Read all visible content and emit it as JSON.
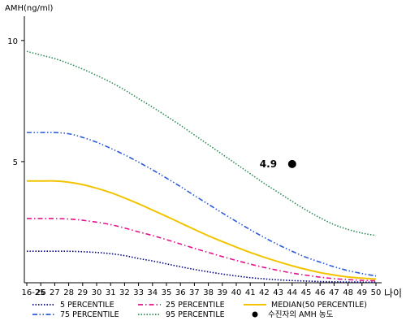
{
  "chart_data": {
    "type": "line",
    "ylabel": "AMH(ng/ml)",
    "xlabel": "나이",
    "x_categories": [
      "16-25",
      "26",
      "27",
      "28",
      "29",
      "30",
      "31",
      "32",
      "33",
      "34",
      "35",
      "36",
      "37",
      "38",
      "39",
      "40",
      "41",
      "42",
      "43",
      "44",
      "45",
      "46",
      "47",
      "48",
      "49",
      "50"
    ],
    "ylim": [
      0,
      11
    ],
    "yticks": [
      5,
      10
    ],
    "grid": false,
    "legend_position": "bottom",
    "series": [
      {
        "name": "5 PERCENTILE",
        "color": "#000080",
        "style": "dotted",
        "values": [
          1.3,
          1.3,
          1.3,
          1.3,
          1.28,
          1.25,
          1.2,
          1.12,
          1.0,
          0.9,
          0.78,
          0.66,
          0.55,
          0.45,
          0.36,
          0.28,
          0.21,
          0.16,
          0.12,
          0.09,
          0.07,
          0.05,
          0.04,
          0.03,
          0.03,
          0.02
        ]
      },
      {
        "name": "25 PERCENTILE",
        "color": "#e0148c",
        "style": "dashdot",
        "values": [
          2.65,
          2.65,
          2.65,
          2.63,
          2.58,
          2.5,
          2.4,
          2.26,
          2.1,
          1.95,
          1.78,
          1.6,
          1.42,
          1.25,
          1.08,
          0.92,
          0.77,
          0.63,
          0.51,
          0.4,
          0.31,
          0.23,
          0.17,
          0.13,
          0.1,
          0.08
        ]
      },
      {
        "name": "MEDIAN(50 PERCENTILE)",
        "color": "#f2c400",
        "style": "solid",
        "values": [
          4.2,
          4.2,
          4.2,
          4.15,
          4.05,
          3.9,
          3.72,
          3.5,
          3.26,
          3.0,
          2.74,
          2.47,
          2.2,
          1.94,
          1.7,
          1.47,
          1.25,
          1.05,
          0.87,
          0.7,
          0.55,
          0.42,
          0.32,
          0.24,
          0.19,
          0.15
        ]
      },
      {
        "name": "75 PERCENTILE",
        "color": "#2c5ad8",
        "style": "dashdotdot",
        "values": [
          6.2,
          6.2,
          6.2,
          6.15,
          6.0,
          5.8,
          5.55,
          5.28,
          4.98,
          4.66,
          4.32,
          3.97,
          3.6,
          3.24,
          2.88,
          2.53,
          2.19,
          1.87,
          1.57,
          1.3,
          1.05,
          0.85,
          0.66,
          0.5,
          0.38,
          0.28
        ]
      },
      {
        "name": "95 PERCENTILE",
        "color": "#2e8b57",
        "style": "dotted",
        "values": [
          9.55,
          9.4,
          9.25,
          9.05,
          8.82,
          8.56,
          8.28,
          7.96,
          7.6,
          7.25,
          6.88,
          6.5,
          6.1,
          5.7,
          5.3,
          4.9,
          4.5,
          4.1,
          3.73,
          3.36,
          3.0,
          2.68,
          2.4,
          2.2,
          2.05,
          1.95
        ]
      }
    ],
    "marker": {
      "name": "수진자의 AMH 농도",
      "x": "44",
      "y": 4.9,
      "label": "4.9",
      "color": "#000000"
    }
  }
}
